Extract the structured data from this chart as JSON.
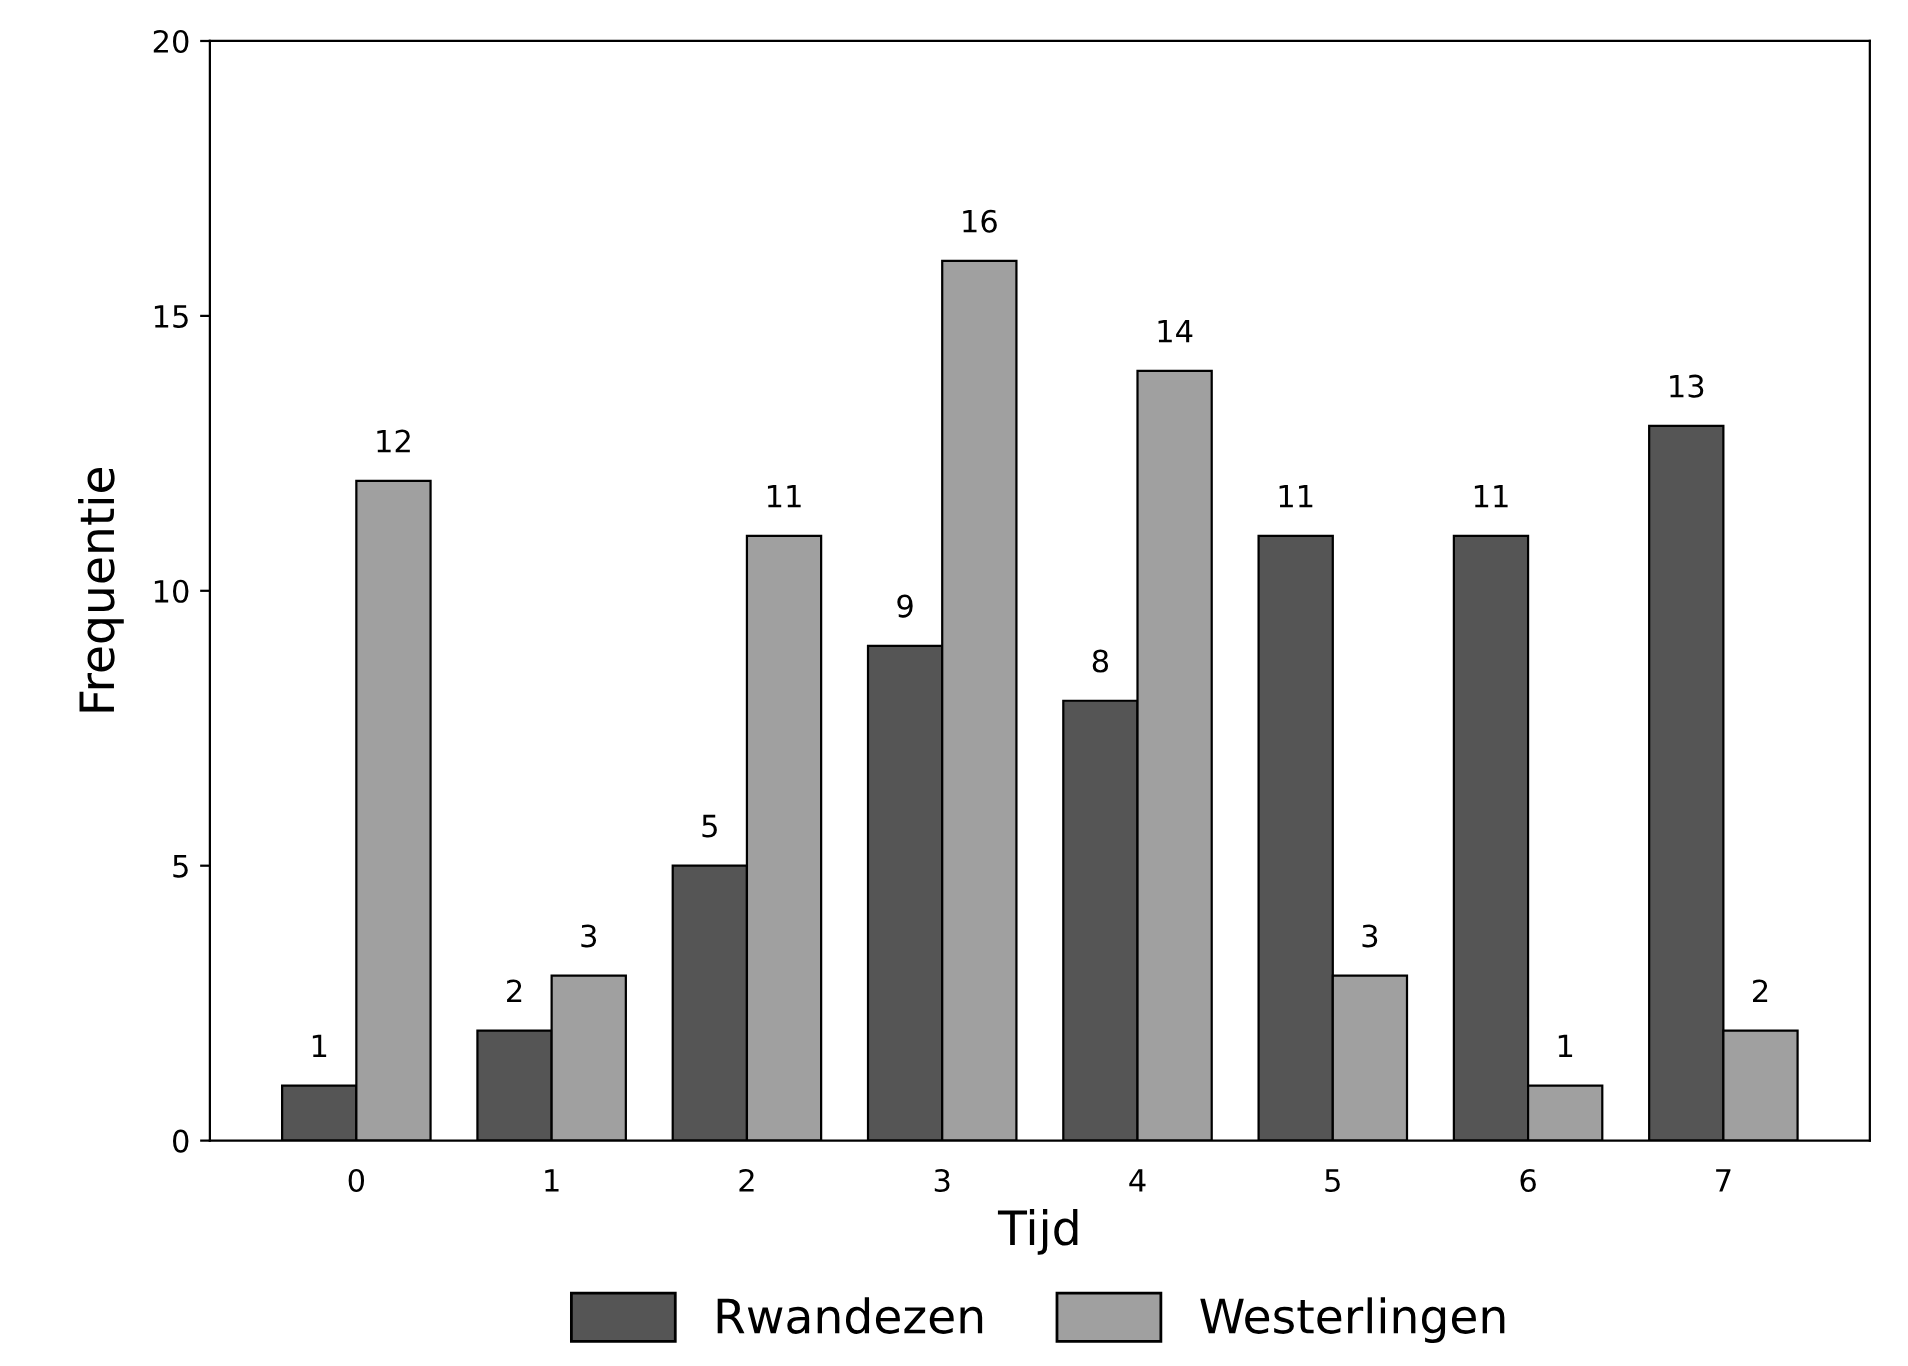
{
  "chart_data": {
    "type": "bar",
    "xlabel": "Tijd",
    "ylabel": "Frequentie",
    "categories": [
      "0",
      "1",
      "2",
      "3",
      "4",
      "5",
      "6",
      "7"
    ],
    "series": [
      {
        "name": "Rwandezen",
        "color": "#555555",
        "values": [
          1,
          2,
          5,
          9,
          8,
          11,
          11,
          13
        ]
      },
      {
        "name": "Westerlingen",
        "color": "#a0a0a0",
        "values": [
          12,
          3,
          11,
          16,
          14,
          3,
          1,
          2
        ]
      }
    ],
    "ylim": [
      0,
      20
    ],
    "yticks": [
      0,
      5,
      10,
      15,
      20
    ],
    "grid": false,
    "legend": "bottom",
    "data_labels": true
  }
}
